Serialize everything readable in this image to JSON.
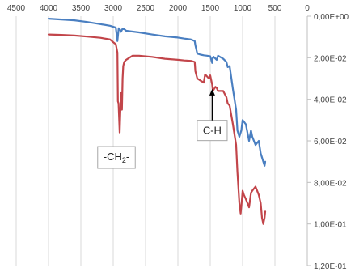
{
  "chart_data": {
    "type": "line",
    "title": "",
    "xlabel": "",
    "ylabel": "",
    "x_reversed": true,
    "xlim": [
      4500,
      0
    ],
    "ylim": [
      0.12,
      0.0
    ],
    "y_reversed": true,
    "grid": "vertical",
    "x_ticks": [
      {
        "value": 4500,
        "label": "4500"
      },
      {
        "value": 4000,
        "label": "4000"
      },
      {
        "value": 3500,
        "label": "3500"
      },
      {
        "value": 3000,
        "label": "3000"
      },
      {
        "value": 2500,
        "label": "2500"
      },
      {
        "value": 2000,
        "label": "2000"
      },
      {
        "value": 1500,
        "label": "1500"
      },
      {
        "value": 1000,
        "label": "1000"
      },
      {
        "value": 500,
        "label": "500"
      },
      {
        "value": 0,
        "label": "0"
      }
    ],
    "y_ticks": [
      {
        "value": 0.0,
        "label": "0,00E+00"
      },
      {
        "value": 0.02,
        "label": "2,00E-02"
      },
      {
        "value": 0.04,
        "label": "4,00E-02"
      },
      {
        "value": 0.06,
        "label": "6,00E-02"
      },
      {
        "value": 0.08,
        "label": "8,00E-02"
      },
      {
        "value": 0.1,
        "label": "1,00E-01"
      },
      {
        "value": 0.12,
        "label": "1,20E-01"
      }
    ],
    "series": [
      {
        "color": "#4a7fc1",
        "x": [
          4000,
          3800,
          3600,
          3400,
          3200,
          3050,
          2960,
          2935,
          2915,
          2900,
          2880,
          2855,
          2845,
          2830,
          2800,
          2700,
          2600,
          2400,
          2200,
          2000,
          1900,
          1800,
          1740,
          1730,
          1700,
          1650,
          1600,
          1550,
          1500,
          1470,
          1460,
          1450,
          1400,
          1380,
          1300,
          1250,
          1230,
          1200,
          1150,
          1100,
          1080,
          1050,
          1020,
          1000,
          950,
          900,
          870,
          850,
          800,
          750,
          720,
          700,
          680,
          660,
          650
        ],
        "y": [
          0.0012,
          0.0016,
          0.002,
          0.0028,
          0.0038,
          0.0046,
          0.0055,
          0.012,
          0.0058,
          0.0062,
          0.0075,
          0.006,
          0.0062,
          0.0062,
          0.007,
          0.0074,
          0.0078,
          0.0088,
          0.0097,
          0.0103,
          0.0108,
          0.0112,
          0.012,
          0.014,
          0.018,
          0.0185,
          0.0188,
          0.019,
          0.0193,
          0.0225,
          0.02,
          0.0195,
          0.021,
          0.019,
          0.0205,
          0.022,
          0.0245,
          0.024,
          0.035,
          0.045,
          0.055,
          0.058,
          0.055,
          0.05,
          0.052,
          0.06,
          0.055,
          0.058,
          0.062,
          0.06,
          0.066,
          0.068,
          0.07,
          0.072,
          0.07
        ]
      },
      {
        "color": "#c2454a",
        "x": [
          4000,
          3800,
          3600,
          3400,
          3200,
          3050,
          3000,
          2960,
          2935,
          2928,
          2918,
          2900,
          2880,
          2865,
          2855,
          2845,
          2830,
          2800,
          2750,
          2700,
          2600,
          2400,
          2200,
          2000,
          1900,
          1800,
          1740,
          1730,
          1700,
          1650,
          1600,
          1580,
          1550,
          1520,
          1500,
          1470,
          1460,
          1440,
          1420,
          1400,
          1380,
          1300,
          1250,
          1230,
          1200,
          1150,
          1100,
          1080,
          1050,
          1030,
          1010,
          1000,
          980,
          950,
          900,
          870,
          850,
          800,
          750,
          720,
          700,
          680,
          660,
          650
        ],
        "y": [
          0.0088,
          0.009,
          0.0093,
          0.0098,
          0.0104,
          0.0112,
          0.0125,
          0.0135,
          0.0175,
          0.041,
          0.042,
          0.056,
          0.037,
          0.045,
          0.03,
          0.024,
          0.022,
          0.021,
          0.02,
          0.019,
          0.019,
          0.0196,
          0.0205,
          0.021,
          0.0213,
          0.0215,
          0.022,
          0.0265,
          0.03,
          0.031,
          0.032,
          0.028,
          0.029,
          0.03,
          0.0285,
          0.033,
          0.036,
          0.035,
          0.034,
          0.0345,
          0.036,
          0.036,
          0.039,
          0.042,
          0.043,
          0.052,
          0.062,
          0.075,
          0.09,
          0.095,
          0.088,
          0.084,
          0.086,
          0.088,
          0.092,
          0.085,
          0.084,
          0.082,
          0.086,
          0.09,
          0.097,
          0.1,
          0.097,
          0.094
        ]
      }
    ],
    "annotations": [
      {
        "kind": "callout",
        "main": "-CH",
        "sub": "2",
        "suffix": "-",
        "x": 2950,
        "y": 0.068
      },
      {
        "kind": "callout",
        "main": "C-H",
        "sub": "",
        "suffix": "",
        "x": 1470,
        "y": 0.055,
        "arrow_to": {
          "x": 1470,
          "y": 0.035
        }
      }
    ]
  }
}
